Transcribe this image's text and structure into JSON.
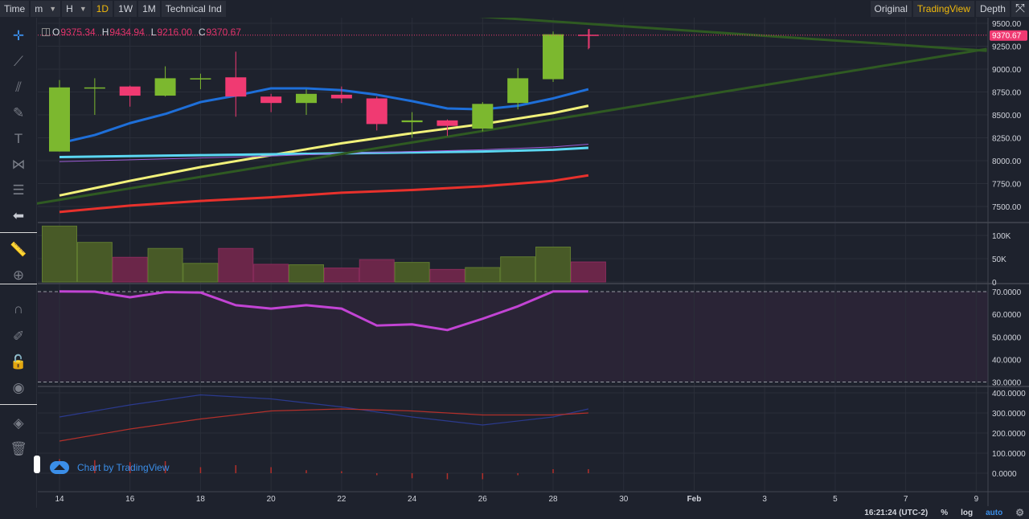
{
  "topbar": {
    "left": [
      "Time",
      "m",
      "H",
      "1D",
      "1W",
      "1M",
      "Technical Ind"
    ],
    "dropdowns": [
      false,
      true,
      true,
      false,
      false,
      false,
      false
    ],
    "active_index": 3,
    "right": [
      "Original",
      "TradingView",
      "Depth"
    ],
    "right_active_index": 1
  },
  "legend": {
    "o_label": "O",
    "o_value": "9375.34",
    "h_label": "H",
    "h_value": "9434.94",
    "l_label": "L",
    "l_value": "9216.00",
    "c_label": "C",
    "c_value": "9370.67"
  },
  "watermark": "Chart by TradingView",
  "bottombar": {
    "time": "16:21:24 (UTC-2)",
    "percent": "%",
    "log": "log",
    "auto": "auto"
  },
  "colors": {
    "up": "#7cb82f",
    "down": "#f03a72",
    "ma_blue": "#1e6fd9",
    "ma_yellow": "#f1f17a",
    "ma_cyan": "#5bd7f2",
    "ma_red": "#e8312c",
    "ma_purple": "#9c5bd6",
    "trend": "#2f5a22",
    "rsi": "#c244d4",
    "macd_blue": "#2b3a8e",
    "macd_red": "#b3302b"
  },
  "chart_data": [
    {
      "type": "candlestick",
      "x_tick_labels": [
        "14",
        "16",
        "18",
        "20",
        "22",
        "24",
        "26",
        "28",
        "30",
        "Feb",
        "3",
        "5",
        "7",
        "9"
      ],
      "x_tick_days": [
        14,
        16,
        18,
        20,
        22,
        24,
        26,
        28,
        30,
        32,
        34,
        36,
        38,
        40
      ],
      "y_tick_labels": [
        "9500.00",
        "9250.00",
        "9000.00",
        "8750.00",
        "8500.00",
        "8250.00",
        "8000.00",
        "7750.00",
        "7500.00"
      ],
      "y_tick_values": [
        9500,
        9250,
        9000,
        8750,
        8500,
        8250,
        8000,
        7750,
        7500
      ],
      "last_price_label": "9370.67",
      "last_price": 9370.67,
      "candles": [
        {
          "day": 14,
          "o": 8100,
          "h": 8880,
          "l": 8100,
          "c": 8800
        },
        {
          "day": 15,
          "o": 8800,
          "h": 8900,
          "l": 8500,
          "c": 8800
        },
        {
          "day": 16,
          "o": 8810,
          "h": 8820,
          "l": 8590,
          "c": 8710
        },
        {
          "day": 17,
          "o": 8710,
          "h": 9030,
          "l": 8700,
          "c": 8900
        },
        {
          "day": 18,
          "o": 8900,
          "h": 8950,
          "l": 8780,
          "c": 8900
        },
        {
          "day": 19,
          "o": 8910,
          "h": 9190,
          "l": 8480,
          "c": 8700
        },
        {
          "day": 20,
          "o": 8700,
          "h": 8730,
          "l": 8530,
          "c": 8630
        },
        {
          "day": 21,
          "o": 8630,
          "h": 8780,
          "l": 8500,
          "c": 8730
        },
        {
          "day": 22,
          "o": 8720,
          "h": 8810,
          "l": 8630,
          "c": 8680
        },
        {
          "day": 23,
          "o": 8680,
          "h": 8700,
          "l": 8330,
          "c": 8400
        },
        {
          "day": 24,
          "o": 8420,
          "h": 8530,
          "l": 8250,
          "c": 8440
        },
        {
          "day": 25,
          "o": 8440,
          "h": 8450,
          "l": 8270,
          "c": 8380
        },
        {
          "day": 26,
          "o": 8350,
          "h": 8640,
          "l": 8320,
          "c": 8620
        },
        {
          "day": 27,
          "o": 8630,
          "h": 9010,
          "l": 8560,
          "c": 8900
        },
        {
          "day": 28,
          "o": 8890,
          "h": 9410,
          "l": 8860,
          "c": 9380
        },
        {
          "day": 29,
          "o": 9375.34,
          "h": 9434.94,
          "l": 9216.0,
          "c": 9370.67
        }
      ],
      "moving_averages": [
        {
          "color_key": "ma_blue",
          "days": [
            14,
            15,
            16,
            17,
            18,
            19,
            20,
            21,
            22,
            23,
            24,
            25,
            26,
            27,
            28,
            29
          ],
          "values": [
            8190,
            8280,
            8410,
            8510,
            8640,
            8710,
            8790,
            8790,
            8770,
            8720,
            8650,
            8570,
            8560,
            8600,
            8680,
            8780
          ]
        },
        {
          "color_key": "ma_yellow",
          "days": [
            14,
            16,
            18,
            20,
            22,
            24,
            26,
            28,
            29
          ],
          "values": [
            7620,
            7780,
            7930,
            8060,
            8190,
            8300,
            8400,
            8520,
            8600
          ]
        },
        {
          "color_key": "ma_cyan",
          "days": [
            14,
            16,
            18,
            20,
            22,
            24,
            26,
            28,
            29
          ],
          "values": [
            8040,
            8050,
            8060,
            8070,
            8080,
            8090,
            8100,
            8120,
            8140
          ]
        },
        {
          "color_key": "ma_purple",
          "days": [
            14,
            16,
            18,
            20,
            22,
            24,
            26,
            28,
            29
          ],
          "values": [
            7990,
            8010,
            8030,
            8050,
            8080,
            8100,
            8120,
            8150,
            8180
          ]
        },
        {
          "color_key": "ma_red",
          "days": [
            14,
            16,
            18,
            20,
            22,
            24,
            26,
            28,
            29
          ],
          "values": [
            7440,
            7510,
            7560,
            7600,
            7650,
            7680,
            7720,
            7780,
            7840
          ]
        }
      ],
      "trend_lines": [
        {
          "from": {
            "day": 23,
            "value": 9650
          },
          "to": {
            "day": 40.3,
            "value": 9200
          }
        },
        {
          "from": {
            "day": 13,
            "value": 7510
          },
          "to": {
            "day": 40.3,
            "value": 9220
          }
        }
      ]
    },
    {
      "type": "bar",
      "name": "volume",
      "y_tick_labels": [
        "100K",
        "50K",
        "0"
      ],
      "y_tick_values": [
        100000,
        50000,
        0
      ],
      "days": [
        14,
        15,
        16,
        17,
        18,
        19,
        20,
        21,
        22,
        23,
        24,
        25,
        26,
        27,
        28,
        29
      ],
      "values": [
        120000,
        85000,
        53000,
        72000,
        40000,
        72000,
        38000,
        37000,
        30000,
        48000,
        42000,
        27000,
        31000,
        54000,
        75000,
        43000
      ],
      "up": [
        true,
        true,
        false,
        true,
        true,
        false,
        false,
        true,
        false,
        false,
        true,
        false,
        true,
        true,
        true,
        false
      ]
    },
    {
      "type": "line",
      "name": "rsi",
      "y_tick_labels": [
        "70.0000",
        "60.0000",
        "50.0000",
        "40.0000",
        "30.0000"
      ],
      "y_tick_values": [
        70,
        60,
        50,
        40,
        30
      ],
      "band": [
        30,
        70
      ],
      "days": [
        14,
        15,
        16,
        17,
        18,
        19,
        20,
        21,
        22,
        23,
        24,
        25,
        26,
        27,
        28,
        29
      ],
      "values": [
        70.1,
        70.0,
        67.5,
        69.8,
        69.6,
        64.0,
        62.5,
        64.0,
        62.5,
        55.0,
        55.5,
        53.0,
        58.0,
        63.5,
        70.1,
        70.1
      ]
    },
    {
      "type": "line",
      "name": "macd",
      "y_tick_labels": [
        "400.0000",
        "300.0000",
        "200.0000",
        "100.0000",
        "0.0000"
      ],
      "y_tick_values": [
        400,
        300,
        200,
        100,
        0
      ],
      "series": [
        {
          "color_key": "macd_blue",
          "days": [
            14,
            16,
            18,
            20,
            22,
            24,
            26,
            28,
            29
          ],
          "values": [
            280,
            340,
            390,
            370,
            330,
            280,
            240,
            280,
            320
          ]
        },
        {
          "color_key": "macd_red",
          "days": [
            14,
            16,
            18,
            20,
            22,
            24,
            26,
            28,
            29
          ],
          "values": [
            160,
            220,
            270,
            310,
            320,
            310,
            290,
            290,
            300
          ]
        }
      ],
      "histogram": {
        "days": [
          14,
          15,
          16,
          17,
          18,
          19,
          20,
          21,
          22,
          23,
          24,
          25,
          26,
          27,
          28,
          29
        ],
        "values": [
          70,
          65,
          55,
          60,
          30,
          40,
          30,
          15,
          10,
          -10,
          -25,
          -30,
          -30,
          -10,
          20,
          20
        ]
      }
    }
  ]
}
